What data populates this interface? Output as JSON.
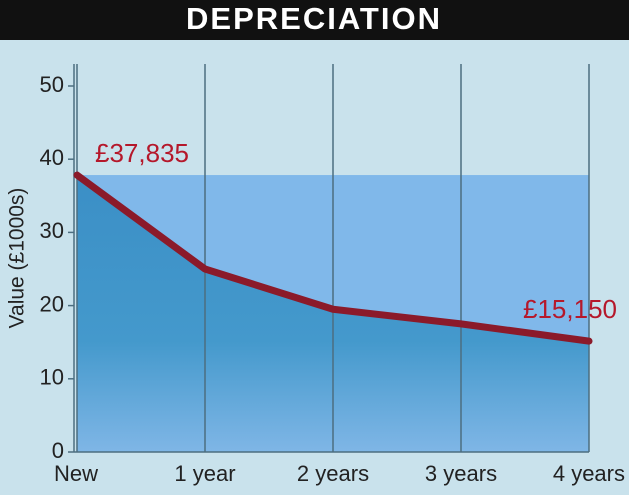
{
  "chart_data": {
    "type": "line",
    "title": "DEPRECIATION",
    "ylabel": "Value (£1000s)",
    "categories": [
      "New",
      "1 year",
      "2 years",
      "3 years",
      "4 years"
    ],
    "values": [
      37.835,
      25,
      19.5,
      17.5,
      15.15
    ],
    "value_labels": [
      "£37,835",
      null,
      null,
      null,
      "£15,150"
    ],
    "color": "#8b1a2a",
    "ylim": [
      0,
      50
    ],
    "yticks": [
      0,
      10,
      20,
      30,
      40,
      50
    ],
    "grid": true
  }
}
